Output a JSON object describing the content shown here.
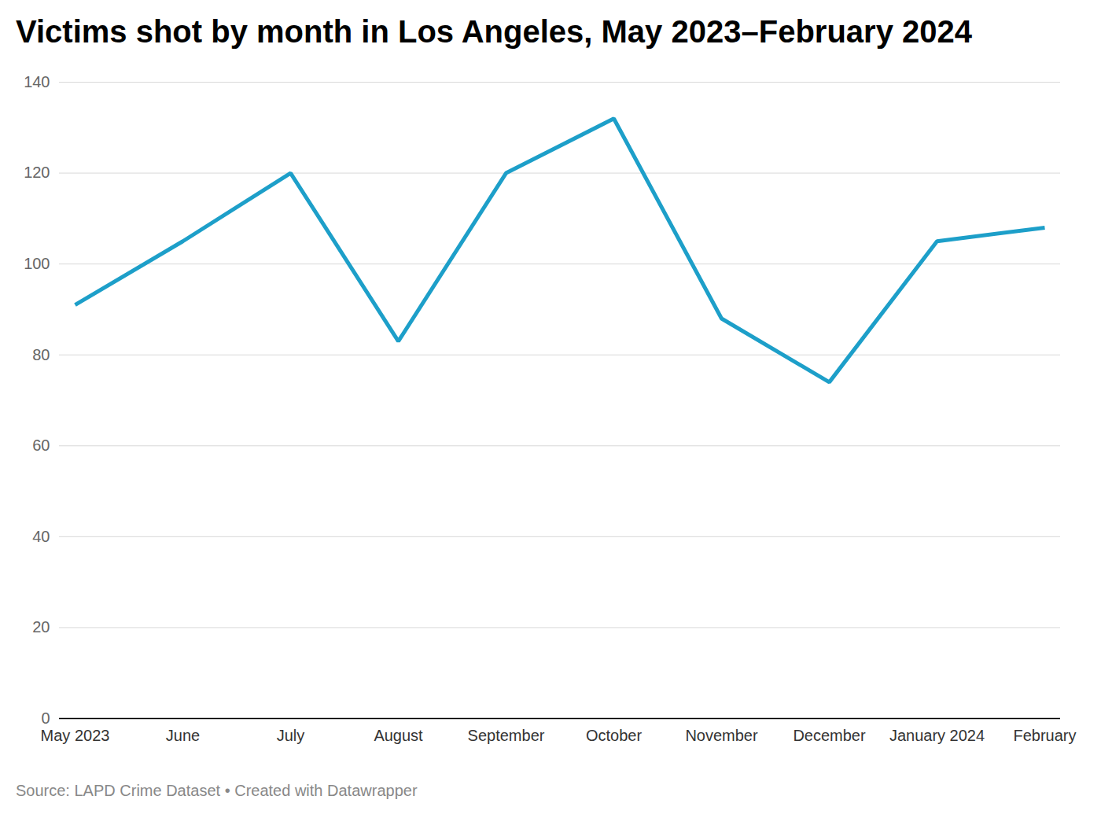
{
  "chart_data": {
    "type": "line",
    "title": "Victims shot by month in Los Angeles, May 2023–February 2024",
    "source": "Source: LAPD Crime Dataset • Created with Datawrapper",
    "categories": [
      "May 2023",
      "June",
      "July",
      "August",
      "September",
      "October",
      "November",
      "December",
      "January 2024",
      "February"
    ],
    "values": [
      91,
      105,
      120,
      83,
      120,
      132,
      88,
      74,
      105,
      108
    ],
    "color": "#1d9fc9",
    "ylim": [
      0,
      140
    ],
    "yticks": [
      0,
      20,
      40,
      60,
      80,
      100,
      120,
      140
    ],
    "grid": true
  }
}
